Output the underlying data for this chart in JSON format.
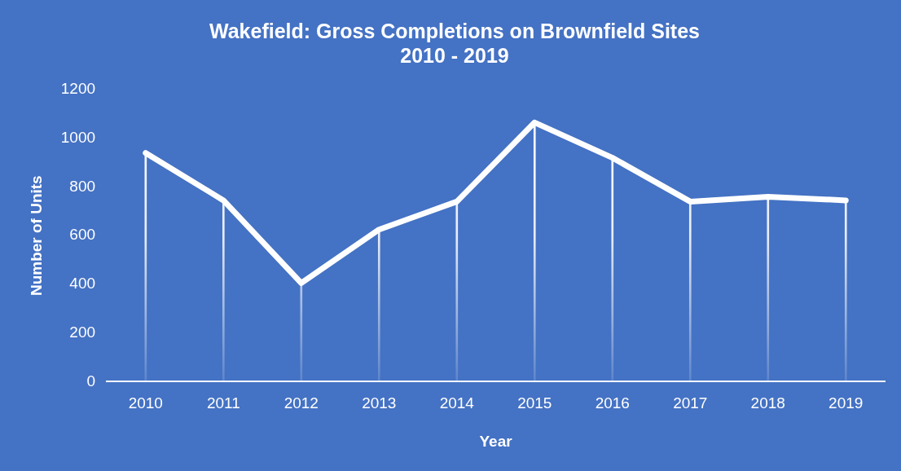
{
  "chart_data": {
    "type": "line",
    "title": "Wakefield: Gross Completions on Brownfield Sites\n2010 - 2019",
    "xlabel": "Year",
    "ylabel": "Number of Units",
    "categories": [
      "2010",
      "2011",
      "2012",
      "2013",
      "2014",
      "2015",
      "2016",
      "2017",
      "2018",
      "2019"
    ],
    "series": [
      {
        "type": "bar",
        "color": "#ffffff",
        "values": [
          940,
          745,
          405,
          625,
          740,
          1065,
          920,
          740,
          760,
          745
        ]
      },
      {
        "color": "#ffffff",
        "values": [
          940,
          745,
          405,
          625,
          740,
          1065,
          920,
          740,
          760,
          745
        ]
      }
    ],
    "ylim": [
      0,
      1200
    ],
    "yticks": [
      0,
      200,
      400,
      600,
      800,
      1000,
      1200
    ],
    "grid": false,
    "legend": false,
    "marker": "none",
    "line_style": "solid"
  }
}
